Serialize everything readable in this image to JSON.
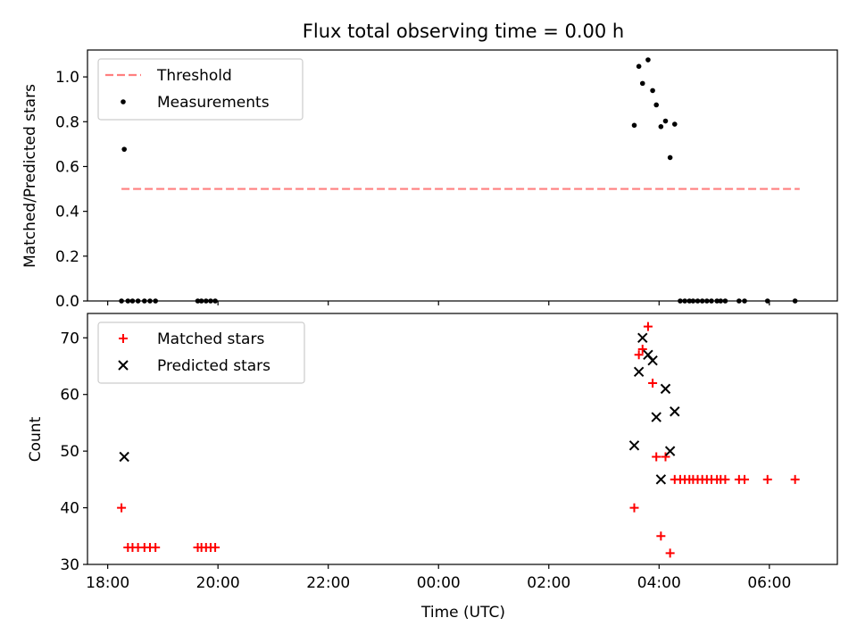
{
  "chart_data": [
    {
      "type": "scatter",
      "title": "Flux total observing time = 0.00 h",
      "ylabel": "Matched/Predicted stars",
      "xlabel": "",
      "ylim": [
        0,
        1.12
      ],
      "yticks": [
        "0.0",
        "0.2",
        "0.4",
        "0.6",
        "0.8",
        "1.0"
      ],
      "ytick_values": [
        0,
        0.2,
        0.4,
        0.6,
        0.8,
        1.0
      ],
      "legend_position": "top-left",
      "threshold": {
        "name": "Threshold",
        "y": 0.5,
        "x_start": "18:15",
        "x_end": "06:33",
        "color": "#ff7f7f"
      },
      "series": [
        {
          "name": "Measurements",
          "color": "#000000",
          "marker": "dot",
          "points": [
            [
              "18:15",
              0.0
            ],
            [
              "18:18",
              0.677
            ],
            [
              "18:22",
              0.0
            ],
            [
              "18:27",
              0.0
            ],
            [
              "18:33",
              0.0
            ],
            [
              "18:40",
              0.0
            ],
            [
              "18:46",
              0.0
            ],
            [
              "18:52",
              0.0
            ],
            [
              "19:38",
              0.0
            ],
            [
              "19:42",
              0.0
            ],
            [
              "19:47",
              0.0
            ],
            [
              "19:52",
              0.0
            ],
            [
              "19:57",
              0.0
            ],
            [
              "03:33",
              0.784
            ],
            [
              "03:38",
              1.047
            ],
            [
              "03:42",
              0.971
            ],
            [
              "03:48",
              1.076
            ],
            [
              "03:53",
              0.939
            ],
            [
              "03:57",
              0.875
            ],
            [
              "04:02",
              0.778
            ],
            [
              "04:07",
              0.803
            ],
            [
              "04:12",
              0.64
            ],
            [
              "04:17",
              0.789
            ],
            [
              "04:23",
              0.0
            ],
            [
              "04:28",
              0.0
            ],
            [
              "04:33",
              0.0
            ],
            [
              "04:37",
              0.0
            ],
            [
              "04:42",
              0.0
            ],
            [
              "04:47",
              0.0
            ],
            [
              "04:52",
              0.0
            ],
            [
              "04:57",
              0.0
            ],
            [
              "05:03",
              0.0
            ],
            [
              "05:07",
              0.0
            ],
            [
              "05:12",
              0.0
            ],
            [
              "05:27",
              0.0
            ],
            [
              "05:33",
              0.0
            ],
            [
              "05:58",
              0.0
            ],
            [
              "06:28",
              0.0
            ]
          ]
        }
      ]
    },
    {
      "type": "scatter",
      "title": "",
      "ylabel": "Count",
      "xlabel": "Time (UTC)",
      "ylim": [
        30,
        74.3
      ],
      "yticks": [
        "30",
        "40",
        "50",
        "60",
        "70"
      ],
      "ytick_values": [
        30,
        40,
        50,
        60,
        70
      ],
      "xticks": [
        "18:00",
        "20:00",
        "22:00",
        "00:00",
        "02:00",
        "04:00",
        "06:00"
      ],
      "legend_position": "top-left",
      "series": [
        {
          "name": "Matched stars",
          "color": "#ff0000",
          "marker": "plus",
          "points": [
            [
              "18:15",
              40
            ],
            [
              "18:22",
              33
            ],
            [
              "18:27",
              33
            ],
            [
              "18:33",
              33
            ],
            [
              "18:40",
              33
            ],
            [
              "18:46",
              33
            ],
            [
              "18:52",
              33
            ],
            [
              "19:38",
              33
            ],
            [
              "19:42",
              33
            ],
            [
              "19:47",
              33
            ],
            [
              "19:52",
              33
            ],
            [
              "19:57",
              33
            ],
            [
              "03:33",
              40
            ],
            [
              "03:38",
              67
            ],
            [
              "03:42",
              68
            ],
            [
              "03:48",
              72
            ],
            [
              "03:53",
              62
            ],
            [
              "03:57",
              49
            ],
            [
              "04:02",
              35
            ],
            [
              "04:07",
              49
            ],
            [
              "04:12",
              32
            ],
            [
              "04:17",
              45
            ],
            [
              "04:23",
              45
            ],
            [
              "04:28",
              45
            ],
            [
              "04:33",
              45
            ],
            [
              "04:37",
              45
            ],
            [
              "04:42",
              45
            ],
            [
              "04:47",
              45
            ],
            [
              "04:52",
              45
            ],
            [
              "04:57",
              45
            ],
            [
              "05:03",
              45
            ],
            [
              "05:07",
              45
            ],
            [
              "05:12",
              45
            ],
            [
              "05:27",
              45
            ],
            [
              "05:33",
              45
            ],
            [
              "05:58",
              45
            ],
            [
              "06:28",
              45
            ]
          ]
        },
        {
          "name": "Predicted stars",
          "color": "#000000",
          "marker": "x",
          "points": [
            [
              "18:18",
              49
            ],
            [
              "03:33",
              51
            ],
            [
              "03:38",
              64
            ],
            [
              "03:42",
              70
            ],
            [
              "03:48",
              67
            ],
            [
              "03:53",
              66
            ],
            [
              "03:57",
              56
            ],
            [
              "04:02",
              45
            ],
            [
              "04:07",
              61
            ],
            [
              "04:12",
              50
            ],
            [
              "04:17",
              57
            ]
          ]
        }
      ]
    }
  ]
}
